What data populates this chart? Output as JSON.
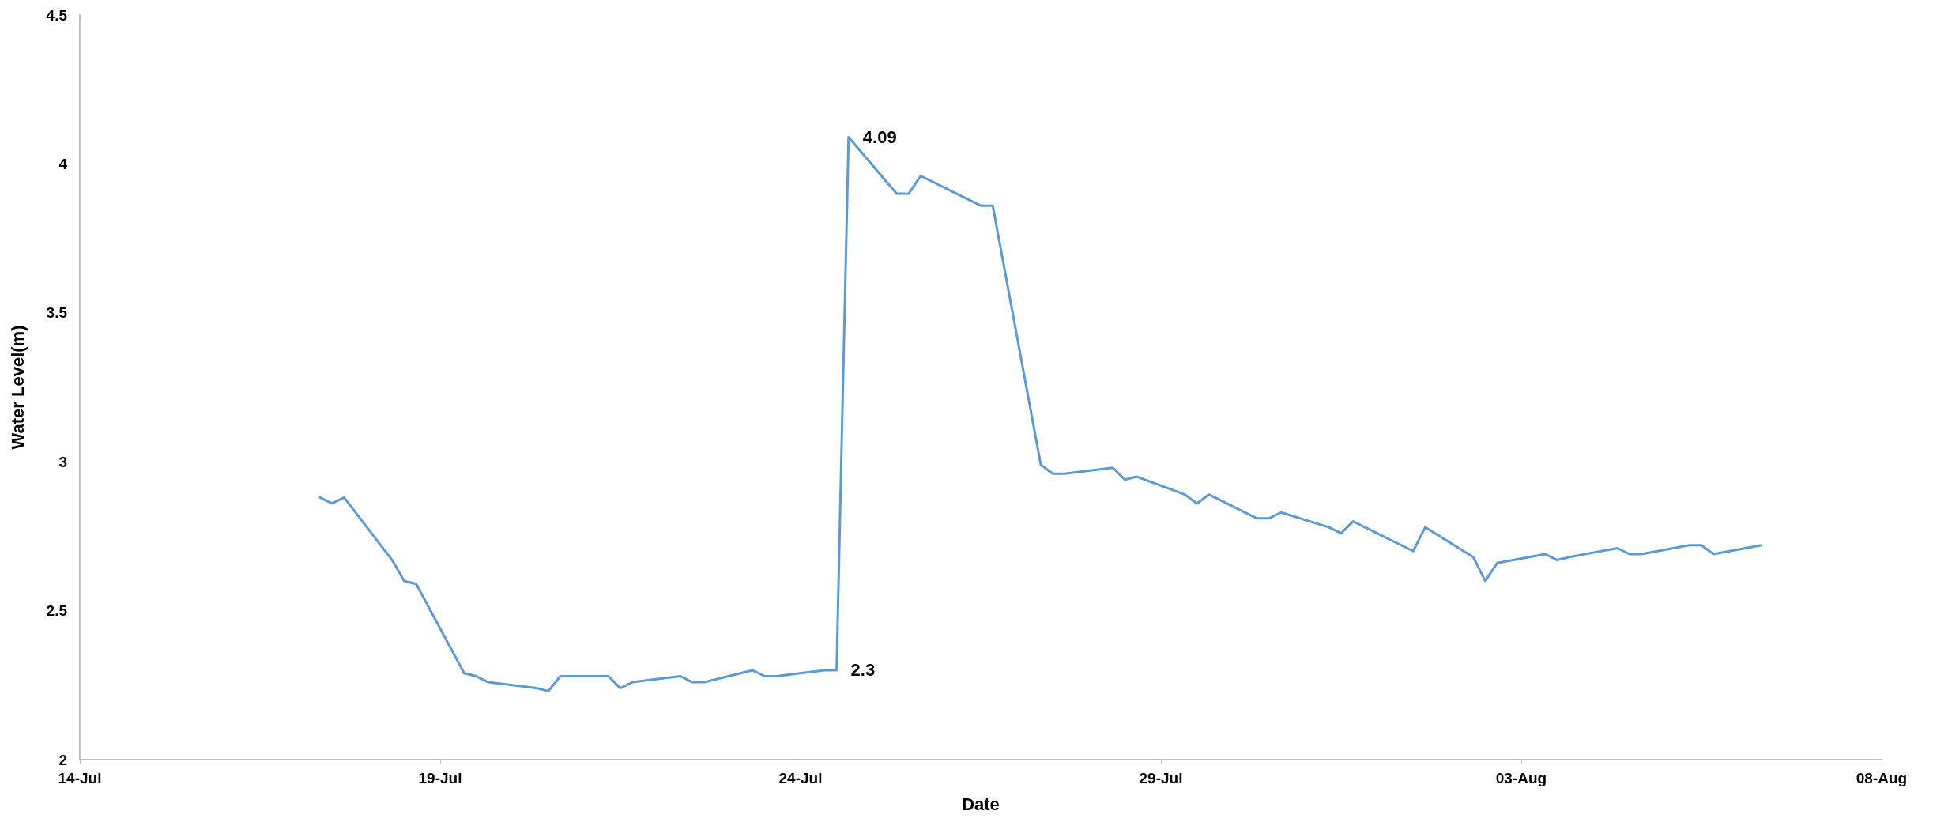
{
  "chart_data": {
    "type": "line",
    "xlabel": "Date",
    "ylabel": "Water Level(m)",
    "x": [
      "--07-17T08:00",
      "--07-17T12:00",
      "--07-17T16:00",
      "--07-18T08:00",
      "--07-18T12:00",
      "--07-18T16:00",
      "--07-19T08:00",
      "--07-19T12:00",
      "--07-19T16:00",
      "--07-20T08:00",
      "--07-20T12:00",
      "--07-20T16:00",
      "--07-21T08:00",
      "--07-21T12:00",
      "--07-21T16:00",
      "--07-22T08:00",
      "--07-22T12:00",
      "--07-22T16:00",
      "--07-23T08:00",
      "--07-23T12:00",
      "--07-23T16:00",
      "--07-24T08:00",
      "--07-24T12:00",
      "--07-24T16:00",
      "--07-25T08:00",
      "--07-25T12:00",
      "--07-25T16:00",
      "--07-26T12:00",
      "--07-26T16:00",
      "--07-27T08:00",
      "--07-27T12:00",
      "--07-27T16:00",
      "--07-28T08:00",
      "--07-28T12:00",
      "--07-28T16:00",
      "--07-29T08:00",
      "--07-29T12:00",
      "--07-29T16:00",
      "--07-30T08:00",
      "--07-30T12:00",
      "--07-30T16:00",
      "--07-31T08:00",
      "--07-31T12:00",
      "--07-31T16:00",
      "--08-01T12:00",
      "--08-01T16:00",
      "--08-02T08:00",
      "--08-02T12:00",
      "--08-02T16:00",
      "--08-03T08:00",
      "--08-03T12:00",
      "--08-03T16:00",
      "--08-04T08:00",
      "--08-04T12:00",
      "--08-04T16:00",
      "--08-05T08:00",
      "--08-05T12:00",
      "--08-05T16:00",
      "--08-06T08:00"
    ],
    "series": [
      {
        "color": "#5b9bd5",
        "values": [
          2.88,
          2.86,
          2.88,
          2.67,
          2.6,
          2.59,
          2.29,
          2.28,
          2.26,
          2.24,
          2.23,
          2.28,
          2.28,
          2.24,
          2.26,
          2.28,
          2.26,
          2.26,
          2.3,
          2.28,
          2.28,
          2.3,
          2.3,
          4.09,
          3.9,
          3.9,
          3.96,
          3.86,
          3.86,
          2.99,
          2.96,
          2.96,
          2.98,
          2.94,
          2.95,
          2.89,
          2.86,
          2.89,
          2.81,
          2.81,
          2.83,
          2.78,
          2.76,
          2.8,
          2.7,
          2.78,
          2.68,
          2.6,
          2.66,
          2.69,
          2.67,
          2.68,
          2.71,
          2.69,
          2.69,
          2.72,
          2.72,
          2.69,
          2.72
        ],
        "value_labels": [
          null,
          null,
          null,
          null,
          null,
          null,
          null,
          null,
          null,
          null,
          null,
          null,
          null,
          null,
          null,
          null,
          null,
          null,
          null,
          null,
          null,
          null,
          "2.3",
          "4.09",
          null,
          null,
          null,
          null,
          null,
          null,
          null,
          null,
          null,
          null,
          null,
          null,
          null,
          null,
          null,
          null,
          null,
          null,
          null,
          null,
          null,
          null,
          null,
          null,
          null,
          null,
          null,
          null,
          null,
          null,
          null,
          null,
          null,
          null,
          null
        ]
      }
    ],
    "xlim": [
      "--07-14",
      "--08-08"
    ],
    "xticks": [
      {
        "value": "--07-14",
        "label": "14-Jul"
      },
      {
        "value": "--07-19",
        "label": "19-Jul"
      },
      {
        "value": "--07-24",
        "label": "24-Jul"
      },
      {
        "value": "--07-29",
        "label": "29-Jul"
      },
      {
        "value": "--08-03",
        "label": "03-Aug"
      },
      {
        "value": "--08-08",
        "label": "08-Aug"
      }
    ],
    "ylim": [
      2,
      4.5
    ],
    "yticks": [
      2,
      2.5,
      3,
      3.5,
      4,
      4.5
    ],
    "marker": "none",
    "line_style": "solid"
  }
}
